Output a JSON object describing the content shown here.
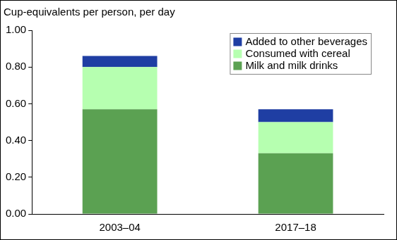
{
  "chart_data": {
    "type": "bar",
    "y_label": "Cup-equivalents per person, per day",
    "categories": [
      "2003–04",
      "2017–18"
    ],
    "series": [
      {
        "name": "Milk and milk drinks",
        "color": "#5ba152",
        "values": [
          0.57,
          0.33
        ]
      },
      {
        "name": "Consumed with cereal",
        "color": "#b6ffb0",
        "values": [
          0.23,
          0.17
        ]
      },
      {
        "name": "Added to other beverages",
        "color": "#1f3ea3",
        "values": [
          0.06,
          0.07
        ]
      }
    ],
    "stacked": true,
    "ylim": [
      0,
      1
    ],
    "yticks": [
      {
        "value": 0,
        "label": "0.00"
      },
      {
        "value": 0.2,
        "label": "0.20"
      },
      {
        "value": 0.4,
        "label": "0.40"
      },
      {
        "value": 0.6,
        "label": "0.60"
      },
      {
        "value": 0.8,
        "label": "0.80"
      },
      {
        "value": 1,
        "label": "1.00"
      }
    ],
    "grid": false,
    "legend": "upper right"
  }
}
